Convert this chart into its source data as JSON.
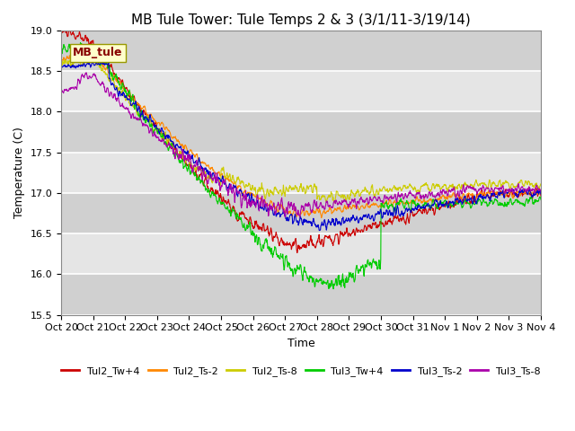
{
  "title": "MB Tule Tower: Tule Temps 2 & 3 (3/1/11-3/19/14)",
  "xlabel": "Time",
  "ylabel": "Temperature (C)",
  "ylim": [
    15.5,
    19.0
  ],
  "yticks": [
    15.5,
    16.0,
    16.5,
    17.0,
    17.5,
    18.0,
    18.5,
    19.0
  ],
  "xtick_labels": [
    "Oct 20",
    "Oct 21",
    "Oct 22",
    "Oct 23",
    "Oct 24",
    "Oct 25",
    "Oct 26",
    "Oct 27",
    "Oct 28",
    "Oct 29",
    "Oct 30",
    "Oct 31",
    "Nov 1",
    "Nov 2",
    "Nov 3",
    "Nov 4"
  ],
  "annotation_text": "MB_tule",
  "background_color": "#ffffff",
  "plot_bg_color": "#e5e5e5",
  "grid_color": "#ffffff",
  "legend_entries": [
    "Tul2_Tw+4",
    "Tul2_Ts-2",
    "Tul2_Ts-8",
    "Tul3_Tw+4",
    "Tul3_Ts-2",
    "Tul3_Ts-8"
  ],
  "line_colors": [
    "#cc0000",
    "#ff8800",
    "#cccc00",
    "#00cc00",
    "#0000cc",
    "#aa00aa"
  ],
  "title_fontsize": 11,
  "axis_fontsize": 9,
  "tick_fontsize": 8
}
